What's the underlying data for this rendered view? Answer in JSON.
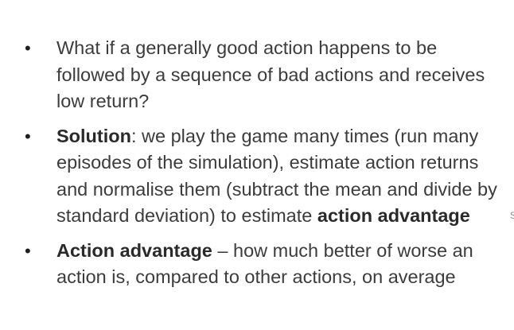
{
  "slide": {
    "bullets": [
      {
        "bullet_glyph": "•",
        "bold_lead": "",
        "text": "What if a generally good action happens to be followed by a sequence of bad actions and receives low return?",
        "bold_tail": ""
      },
      {
        "bullet_glyph": "•",
        "bold_lead": "Solution",
        "text": ": we play the game many times (run many episodes of the simulation), estimate action returns and normalise them (subtract the mean and divide by standard deviation) to estimate ",
        "bold_tail": "action advantage"
      },
      {
        "bullet_glyph": "•",
        "bold_lead": "Action advantage",
        "text": " – how much better of worse an action is, compared to other actions, on average",
        "bold_tail": ""
      }
    ],
    "edge_artifact": "s"
  }
}
